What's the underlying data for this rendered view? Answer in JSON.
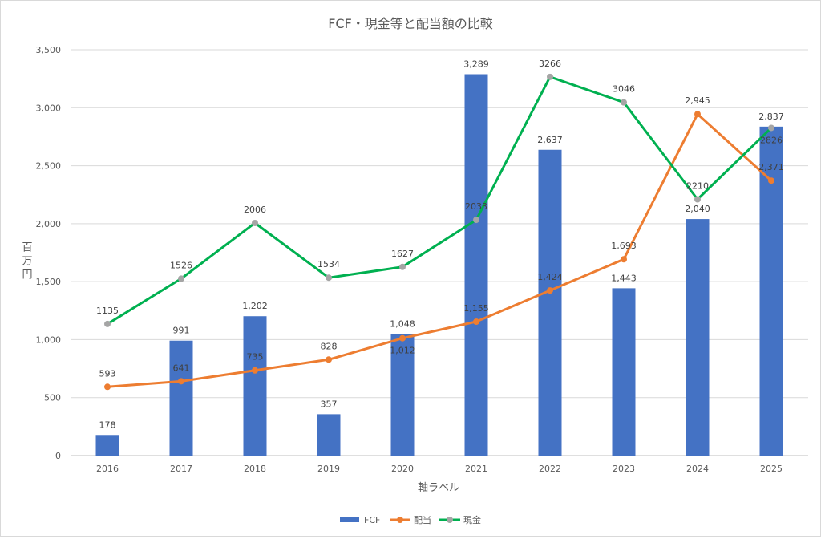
{
  "chart_data": {
    "type": "bar+line",
    "title": "FCF・現金等と配当額の比較",
    "xlabel": "軸ラベル",
    "ylabel": "百万円",
    "ylim": [
      0,
      3500
    ],
    "yticks": [
      0,
      500,
      1000,
      1500,
      2000,
      2500,
      3000,
      3500
    ],
    "ytick_labels": [
      "0",
      "500",
      "1,000",
      "1,500",
      "2,000",
      "2,500",
      "3,000",
      "3,500"
    ],
    "grid": true,
    "legend_position": "bottom",
    "categories": [
      "2016",
      "2017",
      "2018",
      "2019",
      "2020",
      "2021",
      "2022",
      "2023",
      "2024",
      "2025"
    ],
    "series": [
      {
        "name": "FCF",
        "kind": "bar",
        "color": "#4472c4",
        "values": [
          178,
          991,
          1202,
          357,
          1048,
          3289,
          2637,
          1443,
          2040,
          2837
        ],
        "labels": [
          "178",
          "991",
          "1,202",
          "357",
          "1,048",
          "3,289",
          "2,637",
          "1,443",
          "2,040",
          "2,837"
        ]
      },
      {
        "name": "配当",
        "kind": "line",
        "color": "#ed7d31",
        "marker_color": "#ed7d31",
        "values": [
          593,
          641,
          735,
          828,
          1012,
          1155,
          1424,
          1693,
          2945,
          2371
        ],
        "labels": [
          "593",
          "641",
          "735",
          "828",
          "1,012",
          "1,155",
          "1,424",
          "1,693",
          "2,945",
          "2,371"
        ]
      },
      {
        "name": "現金",
        "kind": "line",
        "color": "#00b050",
        "marker_color": "#a5a5a5",
        "values": [
          1135,
          1526,
          2006,
          1534,
          1627,
          2033,
          3266,
          3046,
          2210,
          2826
        ],
        "labels": [
          "1135",
          "1526",
          "2006",
          "1534",
          "1627",
          "2033",
          "3266",
          "3046",
          "2210",
          "2826"
        ]
      }
    ]
  }
}
